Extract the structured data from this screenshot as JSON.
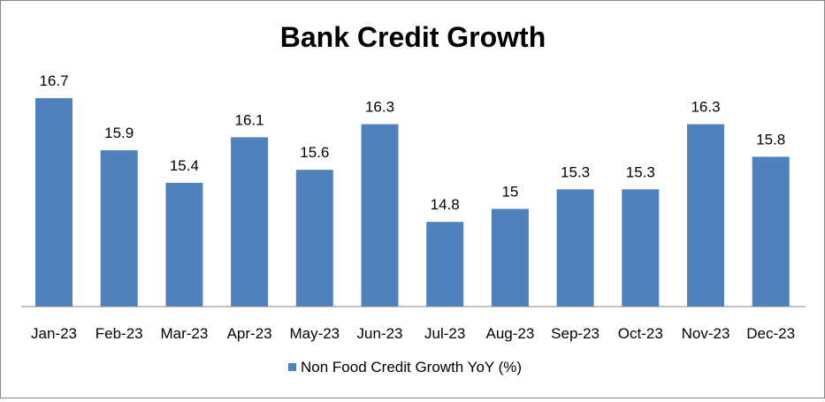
{
  "chart_data": {
    "type": "bar",
    "title": "Bank Credit Growth",
    "xlabel": "",
    "ylabel": "",
    "categories": [
      "Jan-23",
      "Feb-23",
      "Mar-23",
      "Apr-23",
      "May-23",
      "Jun-23",
      "Jul-23",
      "Aug-23",
      "Sep-23",
      "Oct-23",
      "Nov-23",
      "Dec-23"
    ],
    "series": [
      {
        "name": "Non Food Credit Growth YoY (%)",
        "values": [
          16.7,
          15.9,
          15.4,
          16.1,
          15.6,
          16.3,
          14.8,
          15,
          15.3,
          15.3,
          16.3,
          15.8
        ],
        "color": "#4F81BD"
      }
    ],
    "data_labels": [
      "16.7",
      "15.9",
      "15.4",
      "16.1",
      "15.6",
      "16.3",
      "14.8",
      "15",
      "15.3",
      "15.3",
      "16.3",
      "15.8"
    ],
    "ylim": [
      13.5,
      17
    ],
    "grid": false,
    "legend_position": "bottom"
  }
}
